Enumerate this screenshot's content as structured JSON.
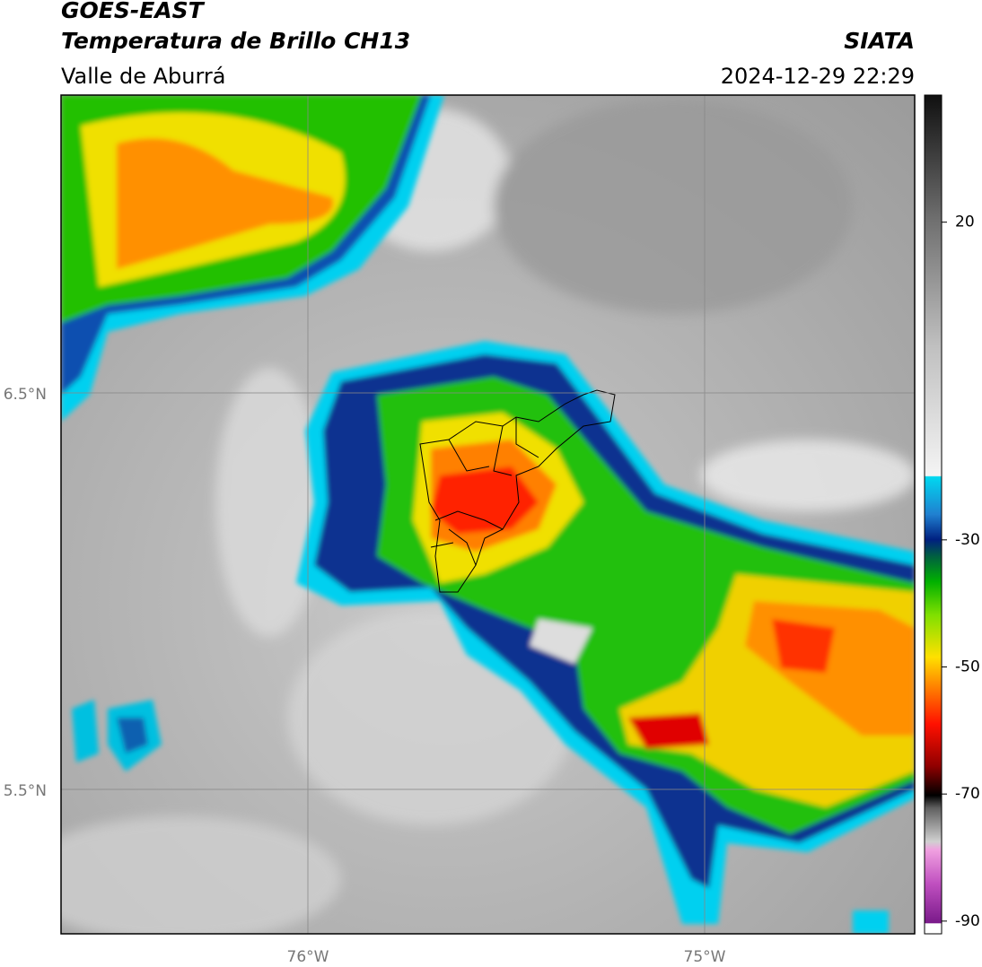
{
  "header": {
    "title": "GOES-EAST",
    "subtitle": "Temperatura de Brillo CH13",
    "region": "Valle de Aburrá",
    "source": "SIATA",
    "datetime": "2024-12-29 22:29"
  },
  "map": {
    "lat_labels": [
      "6.5°N",
      "5.5°N"
    ],
    "lon_labels": [
      "76°W",
      "75°W"
    ]
  },
  "colorbar": {
    "range": [
      -92,
      40
    ],
    "ticks": [
      20,
      -30,
      -50,
      -70,
      -90
    ]
  }
}
